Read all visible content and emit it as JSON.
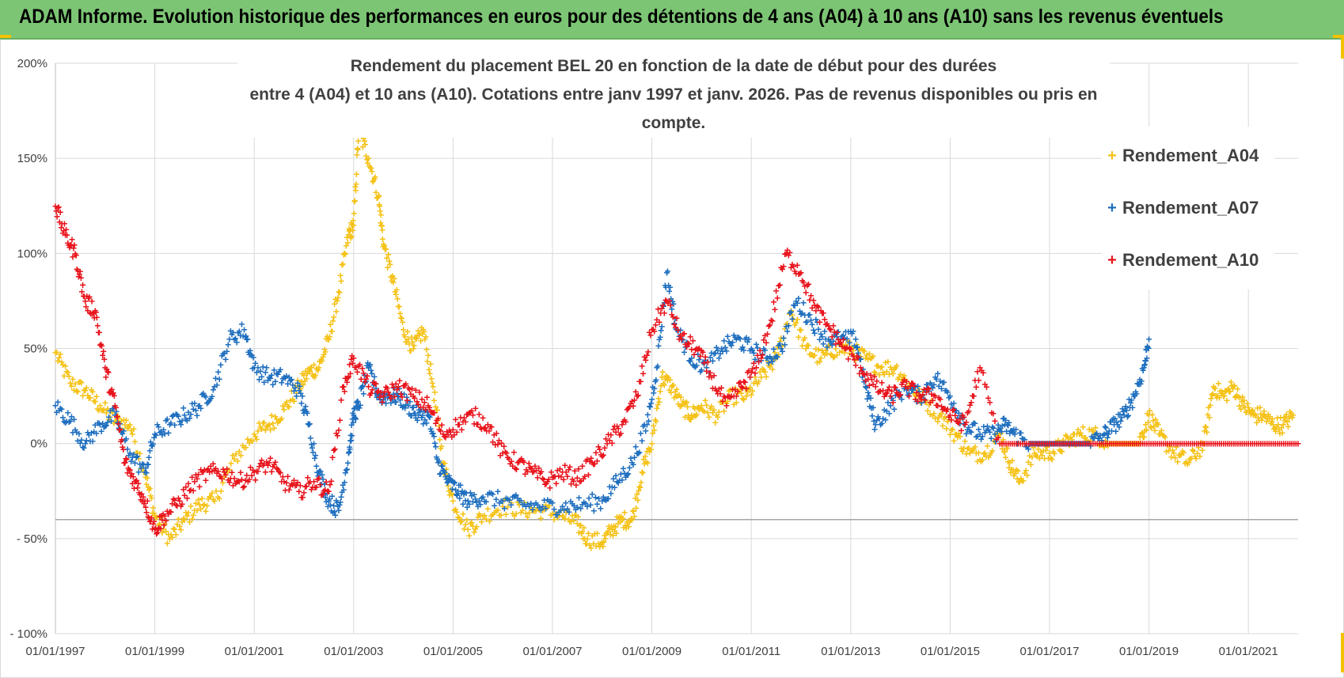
{
  "banner": {
    "title": "ADAM Informe. Evolution historique des performances en euros pour des détentions de 4 ans (A04) à 10 ans (A10) sans les revenus éventuels"
  },
  "colors": {
    "banner": "#7cc574",
    "accent": "#f2c200",
    "A04": "#f5c218",
    "A07": "#1f6fbf",
    "A10": "#e8141c",
    "grid": "#d9d9d9"
  },
  "chart_data": {
    "type": "scatter",
    "title_line1": "Rendement du placement BEL 20 en fonction de la date de début pour des durées",
    "title_line2": "entre 4 (A04) et 10 ans (A10).  Cotations entre janv 1997 et janv. 2026. Pas de revenus disponibles ou pris en compte.",
    "x_range": [
      1997.0,
      2022.0
    ],
    "ylim": [
      -100,
      200
    ],
    "y_ticks": [
      200,
      150,
      100,
      50,
      0,
      -50,
      -100
    ],
    "y_tick_labels": [
      "200%",
      "150%",
      "100%",
      "50%",
      "0%",
      "- 50%",
      "- 100%"
    ],
    "x_ticks": [
      1997,
      1999,
      2001,
      2003,
      2005,
      2007,
      2009,
      2011,
      2013,
      2015,
      2017,
      2019,
      2021
    ],
    "x_tick_labels": [
      "01/01/1997",
      "01/01/1999",
      "01/01/2001",
      "01/01/2003",
      "01/01/2005",
      "01/01/2007",
      "01/01/2009",
      "01/01/2011",
      "01/01/2013",
      "01/01/2015",
      "01/01/2017",
      "01/01/2019",
      "01/01/2021"
    ],
    "reference_line_y": -40,
    "legend": [
      "Rendement_A04",
      "Rendement_A07",
      "Rendement_A10"
    ],
    "series": [
      {
        "name": "Rendement_A04",
        "color": "#f5c218",
        "x": [
          1997.0,
          1997.3,
          1997.6,
          1997.9,
          1998.2,
          1998.5,
          1998.8,
          1999.0,
          1999.3,
          1999.6,
          1999.9,
          2000.2,
          2000.6,
          2001.0,
          2001.3,
          2001.6,
          2001.9,
          2002.1,
          2002.3,
          2002.5,
          2002.7,
          2002.9,
          2003.0,
          2003.1,
          2003.3,
          2003.5,
          2003.6,
          2003.8,
          2004.0,
          2004.2,
          2004.4,
          2004.6,
          2004.8,
          2005.0,
          2005.3,
          2005.6,
          2006.0,
          2006.4,
          2006.8,
          2007.2,
          2007.5,
          2007.7,
          2008.0,
          2008.2,
          2008.4,
          2008.6,
          2008.8,
          2009.0,
          2009.2,
          2009.4,
          2009.6,
          2009.8,
          2010.0,
          2010.3,
          2010.6,
          2010.9,
          2011.2,
          2011.5,
          2011.8,
          2012.1,
          2012.4,
          2012.7,
          2013.0,
          2013.3,
          2013.6,
          2013.9,
          2014.2,
          2014.5,
          2014.8,
          2015.1,
          2015.4,
          2015.7,
          2016.0,
          2016.2,
          2016.4,
          2016.7,
          2017.0,
          2017.3,
          2017.6,
          2017.9,
          2018.2,
          2018.5,
          2018.8,
          2019.0,
          2019.2,
          2019.5,
          2019.8,
          2020.1,
          2020.3,
          2020.5,
          2020.7,
          2020.9,
          2021.1,
          2021.3,
          2021.5,
          2021.7,
          2021.9
        ],
        "y": [
          48,
          32,
          28,
          20,
          12,
          10,
          -15,
          -38,
          -50,
          -40,
          -32,
          -30,
          -8,
          5,
          10,
          18,
          30,
          38,
          40,
          55,
          80,
          110,
          115,
          165,
          150,
          130,
          105,
          85,
          60,
          50,
          60,
          30,
          -10,
          -30,
          -45,
          -38,
          -33,
          -35,
          -35,
          -38,
          -42,
          -50,
          -52,
          -45,
          -40,
          -40,
          -15,
          0,
          35,
          30,
          20,
          15,
          20,
          15,
          25,
          25,
          35,
          45,
          70,
          50,
          45,
          50,
          50,
          45,
          40,
          40,
          30,
          22,
          15,
          5,
          -5,
          -5,
          5,
          -10,
          -20,
          -5,
          -5,
          0,
          5,
          5,
          0,
          0,
          0,
          15,
          5,
          -5,
          -10,
          0,
          30,
          25,
          30,
          20,
          15,
          15,
          10,
          10,
          15
        ]
      },
      {
        "name": "Rendement_A07",
        "color": "#1f6fbf",
        "x": [
          1997.0,
          1997.3,
          1997.6,
          1997.9,
          1998.2,
          1998.5,
          1998.8,
          1999.0,
          1999.3,
          1999.6,
          1999.9,
          2000.2,
          2000.5,
          2000.8,
          2001.0,
          2001.3,
          2001.6,
          2001.9,
          2002.1,
          2002.3,
          2002.5,
          2002.7,
          2002.9,
          2003.0,
          2003.1,
          2003.3,
          2003.5,
          2003.7,
          2003.9,
          2004.1,
          2004.3,
          2004.5,
          2004.7,
          2004.9,
          2005.1,
          2005.3,
          2005.6,
          2006.0,
          2006.4,
          2006.8,
          2007.2,
          2007.6,
          2008.0,
          2008.3,
          2008.6,
          2008.9,
          2009.1,
          2009.3,
          2009.5,
          2009.8,
          2010.1,
          2010.4,
          2010.7,
          2011.0,
          2011.3,
          2011.6,
          2011.9,
          2012.2,
          2012.5,
          2012.8,
          2013.1,
          2013.3,
          2013.5,
          2013.8,
          2014.1,
          2014.4,
          2014.7,
          2015.0,
          2015.3,
          2015.6,
          2015.9,
          2016.1,
          2016.3,
          2016.6,
          2016.9,
          2017.2,
          2017.5,
          2017.8,
          2018.1,
          2018.3,
          2018.5,
          2018.7,
          2018.9,
          2019.0
        ],
        "y": [
          20,
          12,
          0,
          10,
          15,
          -5,
          -15,
          5,
          10,
          15,
          20,
          30,
          55,
          60,
          40,
          35,
          35,
          28,
          10,
          -15,
          -30,
          -35,
          -5,
          15,
          20,
          40,
          25,
          25,
          25,
          20,
          15,
          15,
          -10,
          -20,
          -25,
          -30,
          -28,
          -30,
          -32,
          -33,
          -33,
          -32,
          -30,
          -20,
          -10,
          10,
          40,
          90,
          60,
          45,
          40,
          50,
          55,
          50,
          45,
          50,
          75,
          65,
          55,
          55,
          55,
          30,
          10,
          20,
          30,
          25,
          35,
          25,
          10,
          5,
          5,
          10,
          5,
          0,
          0,
          0,
          0,
          0,
          5,
          10,
          15,
          25,
          40,
          55
        ]
      },
      {
        "name": "Rendement_A10",
        "color": "#e8141c",
        "x": [
          1997.0,
          1997.2,
          1997.4,
          1997.6,
          1997.8,
          1998.0,
          1998.2,
          1998.4,
          1998.6,
          1998.8,
          1999.0,
          1999.2,
          1999.5,
          1999.8,
          2000.1,
          2000.4,
          2000.7,
          2001.0,
          2001.3,
          2001.6,
          2001.9,
          2002.2,
          2002.5,
          2002.8,
          2003.0,
          2003.3,
          2003.6,
          2003.9,
          2004.2,
          2004.5,
          2004.8,
          2005.1,
          2005.4,
          2005.7,
          2006.0,
          2006.3,
          2006.6,
          2006.9,
          2007.2,
          2007.5,
          2007.8,
          2008.1,
          2008.4,
          2008.7,
          2009.0,
          2009.3,
          2009.6,
          2009.9,
          2010.2,
          2010.5,
          2010.8,
          2011.1,
          2011.4,
          2011.7,
          2012.0,
          2012.3,
          2012.6,
          2012.9,
          2013.2,
          2013.5,
          2013.8,
          2014.1,
          2014.4,
          2014.7,
          2015.0,
          2015.3,
          2015.6,
          2016.0,
          2016.5,
          2017.0,
          2017.5,
          2018.0,
          2018.5,
          2019.0,
          2019.5,
          2020.0,
          2020.5,
          2021.0,
          2021.5,
          2022.0
        ],
        "y": [
          125,
          110,
          100,
          75,
          70,
          40,
          20,
          -10,
          -20,
          -30,
          -45,
          -38,
          -30,
          -20,
          -15,
          -15,
          -20,
          -15,
          -10,
          -20,
          -25,
          -20,
          -25,
          30,
          45,
          30,
          25,
          30,
          25,
          20,
          5,
          10,
          15,
          10,
          -5,
          -10,
          -15,
          -20,
          -15,
          -18,
          -10,
          0,
          10,
          25,
          60,
          75,
          55,
          50,
          35,
          20,
          30,
          40,
          65,
          100,
          90,
          70,
          60,
          50,
          40,
          30,
          25,
          30,
          25,
          25,
          15,
          10,
          40,
          0,
          0,
          0,
          0,
          0,
          0,
          0,
          0,
          0,
          0,
          0,
          0,
          0
        ]
      }
    ]
  }
}
